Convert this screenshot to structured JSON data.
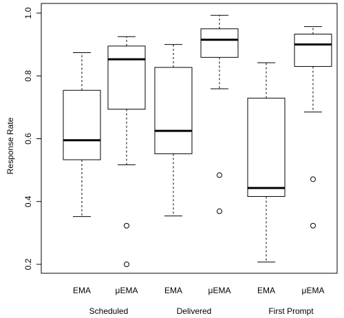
{
  "chart_data": {
    "type": "boxplot",
    "title": "",
    "xlabel": "",
    "ylabel": "Response Rate",
    "ylim": [
      0.18,
      1.0
    ],
    "yticks": [
      "0.2",
      "0.4",
      "0.6",
      "0.8",
      "1.0"
    ],
    "groups": [
      "Scheduled",
      "Delivered",
      "First Prompt"
    ],
    "boxes": [
      {
        "label": "EMA",
        "group": 0,
        "whisker_low": 0.352,
        "q1": 0.533,
        "median": 0.595,
        "q3": 0.754,
        "whisker_high": 0.874,
        "outliers": []
      },
      {
        "label": "μEMA",
        "group": 0,
        "whisker_low": 0.517,
        "q1": 0.694,
        "median": 0.853,
        "q3": 0.895,
        "whisker_high": 0.925,
        "outliers": [
          0.323,
          0.2
        ]
      },
      {
        "label": "EMA",
        "group": 1,
        "whisker_low": 0.354,
        "q1": 0.552,
        "median": 0.625,
        "q3": 0.827,
        "whisker_high": 0.9,
        "outliers": []
      },
      {
        "label": "μEMA",
        "group": 1,
        "whisker_low": 0.759,
        "q1": 0.859,
        "median": 0.915,
        "q3": 0.95,
        "whisker_high": 0.993,
        "outliers": [
          0.484,
          0.369
        ]
      },
      {
        "label": "EMA",
        "group": 2,
        "whisker_low": 0.207,
        "q1": 0.416,
        "median": 0.443,
        "q3": 0.729,
        "whisker_high": 0.842,
        "outliers": []
      },
      {
        "label": "μEMA",
        "group": 2,
        "whisker_low": 0.685,
        "q1": 0.83,
        "median": 0.9,
        "q3": 0.933,
        "whisker_high": 0.957,
        "outliers": [
          0.471,
          0.323
        ]
      }
    ]
  }
}
